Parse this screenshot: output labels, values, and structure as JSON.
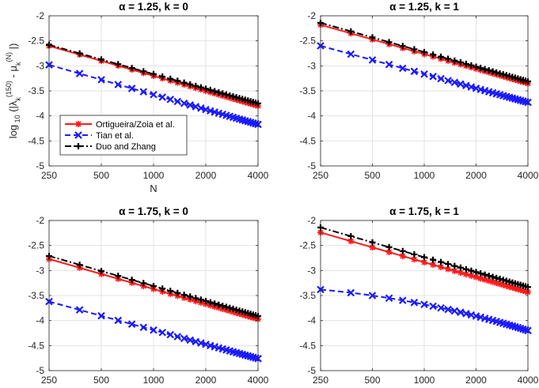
{
  "figure": {
    "legend": {
      "entries": [
        "Ortigueira/Zoia et al.",
        "Tian et al.",
        "Duo and Zhang"
      ],
      "placement": "lower-left of first panel"
    },
    "series_style": [
      {
        "name": "Ortigueira/Zoia et al.",
        "color": "#ff1a1a",
        "marker": "asterisk",
        "dash": "solid"
      },
      {
        "name": "Tian et al.",
        "color": "#1a1aff",
        "marker": "x",
        "dash": "dashed"
      },
      {
        "name": "Duo and Zhang",
        "color": "#000000",
        "marker": "plus",
        "dash": "dashdot"
      }
    ],
    "ylabel_parts": {
      "log": "log",
      "base": "10",
      "lambda": "(|λ",
      "lambda_sub": "k",
      "lambda_sup": "(150)",
      "minus": "- μ",
      "mu_sub": "k",
      "mu_sup": "(N)",
      "close": "|)"
    }
  },
  "chart_data": [
    {
      "type": "line",
      "title": "α = 1.25, k = 0",
      "xlabel": "N",
      "ylabel": "log10 (|λk(150) - μk(N)|)",
      "xscale": "log2",
      "xlim": [
        250,
        4000
      ],
      "ylim": [
        -5,
        -2
      ],
      "xticks": [
        "250",
        "500",
        "1000",
        "2000",
        "4000"
      ],
      "yticks": [
        "-2",
        "-2.5",
        "-3",
        "-3.5",
        "-4",
        "-4.5",
        "-5"
      ],
      "grid": true,
      "series": [
        {
          "name": "Ortigueira/Zoia et al.",
          "start": -2.6,
          "end": -3.8
        },
        {
          "name": "Tian et al.",
          "start": -2.98,
          "end": -4.17
        },
        {
          "name": "Duo and Zhang",
          "start": -2.58,
          "end": -3.75
        }
      ]
    },
    {
      "type": "line",
      "title": "α = 1.25, k = 1",
      "xscale": "log2",
      "xlim": [
        250,
        4000
      ],
      "ylim": [
        -5,
        -2
      ],
      "xticks": [
        "250",
        "500",
        "1000",
        "2000",
        "4000"
      ],
      "yticks": [
        "-2",
        "-2.5",
        "-3",
        "-3.5",
        "-4",
        "-4.5",
        "-5"
      ],
      "grid": true,
      "series": [
        {
          "name": "Ortigueira/Zoia et al.",
          "start": -2.18,
          "end": -3.35
        },
        {
          "name": "Tian et al.",
          "start": -2.6,
          "end": -3.73
        },
        {
          "name": "Duo and Zhang",
          "start": -2.14,
          "end": -3.31
        }
      ]
    },
    {
      "type": "line",
      "title": "α = 1.75, k = 0",
      "xscale": "log2",
      "xlim": [
        250,
        4000
      ],
      "ylim": [
        -5,
        -2
      ],
      "xticks": [
        "250",
        "500",
        "1000",
        "2000",
        "4000"
      ],
      "yticks": [
        "-2",
        "-2.5",
        "-3",
        "-3.5",
        "-4",
        "-4.5",
        "-5"
      ],
      "grid": true,
      "series": [
        {
          "name": "Ortigueira/Zoia et al.",
          "start": -2.77,
          "end": -3.97
        },
        {
          "name": "Tian et al.",
          "start": -3.62,
          "end": -4.76
        },
        {
          "name": "Duo and Zhang",
          "start": -2.71,
          "end": -3.91
        }
      ]
    },
    {
      "type": "line",
      "title": "α = 1.75, k = 1",
      "xscale": "log2",
      "xlim": [
        250,
        4000
      ],
      "ylim": [
        -5,
        -2
      ],
      "xticks": [
        "250",
        "500",
        "1000",
        "2000",
        "4000"
      ],
      "yticks": [
        "-2",
        "-2.5",
        "-3",
        "-3.5",
        "-4",
        "-4.5",
        "-5"
      ],
      "grid": true,
      "series": [
        {
          "name": "Ortigueira/Zoia et al.",
          "start": -2.24,
          "end": -3.43
        },
        {
          "name": "Tian et al.",
          "start": -3.38,
          "end": -4.2,
          "shape": "concave"
        },
        {
          "name": "Duo and Zhang",
          "start": -2.14,
          "end": -3.33
        }
      ]
    }
  ]
}
